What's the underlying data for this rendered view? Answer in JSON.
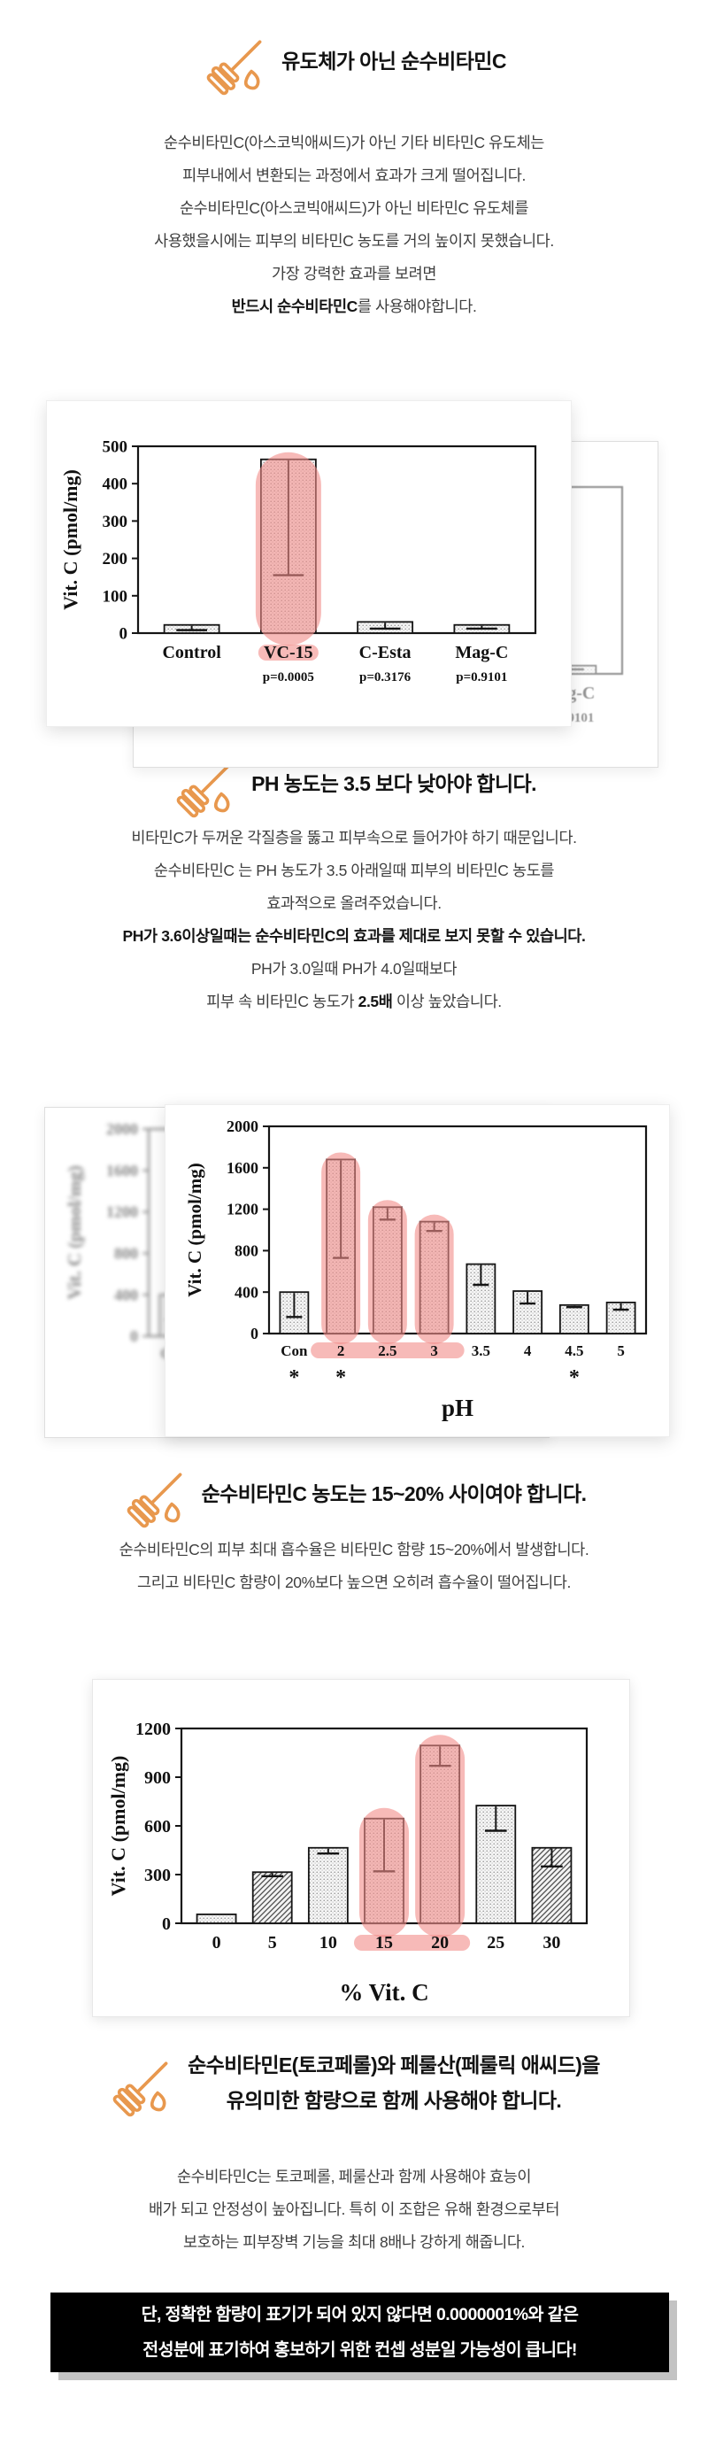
{
  "colors": {
    "accent_orange": "#E8984E",
    "heading_text": "#121212",
    "body_text": "#3e3e3e",
    "highlight_pink": "#F28C88",
    "bar_fill_light": "#f6f6f6",
    "chart_line": "#111111",
    "warning_bg": "#000000",
    "warning_text": "#ffffff",
    "warning_shadow": "#c3c3c3"
  },
  "sections": [
    {
      "icon": "honey-dipper-icon",
      "heading_lines": [
        "유도체가 아닌 순수비타민C"
      ],
      "paragraph": [
        [
          {
            "t": "순수비타민C(아스코빅애씨드)가 아닌 기타 비타민C 유도체는"
          }
        ],
        [
          {
            "t": "피부내에서 변환되는 과정에서 효과가 크게 떨어집니다."
          }
        ],
        [
          {
            "t": "순수비타민C(아스코빅애씨드)가 아닌 비타민C 유도체를"
          }
        ],
        [
          {
            "t": "사용했을시에는 피부의 비타민C 농도를 거의 높이지 못했습니다."
          }
        ],
        [
          {
            "t": "가장 강력한 효과를 보려면"
          }
        ],
        [
          {
            "t": "반드시 순수비타민C",
            "b": true
          },
          {
            "t": "를 사용해야합니다."
          }
        ]
      ]
    },
    {
      "icon": "honey-dipper-icon",
      "heading_lines": [
        "PH 농도는 3.5 보다 낮아야 합니다."
      ],
      "paragraph": [
        [
          {
            "t": "비타민C가 두꺼운 각질층을 뚫고 피부속으로 들어가야 하기 때문입니다."
          }
        ],
        [
          {
            "t": "순수비타민C 는 PH 농도가 3.5 아래일때 피부의 비타민C 농도를"
          }
        ],
        [
          {
            "t": "효과적으로 올려주었습니다."
          }
        ],
        [
          {
            "t": "PH가 3.6이상일때는 순수비타민C의 효과를 제대로 보지 못할 수 있습니다.",
            "b": true
          }
        ],
        [
          {
            "t": "PH가 3.0일때 PH가 4.0일때보다"
          }
        ],
        [
          {
            "t": "피부 속 비타민C 농도가 "
          },
          {
            "t": "2.5배",
            "b": true
          },
          {
            "t": " 이상 높았습니다."
          }
        ]
      ]
    },
    {
      "icon": "honey-dipper-icon",
      "heading_lines": [
        "순수비타민C 농도는 15~20% 사이여야 합니다."
      ],
      "paragraph": [
        [
          {
            "t": "순수비타민C의 피부 최대 흡수율은 비타민C 함량 15~20%에서 발생합니다."
          }
        ],
        [
          {
            "t": "그리고 비타민C 함량이 20%보다 높으면 오히려 흡수율이 떨어집니다."
          }
        ]
      ]
    },
    {
      "icon": "honey-dipper-icon",
      "heading_lines": [
        "순수비타민E(토코페롤)와 페룰산(페룰릭 애씨드)을",
        "유의미한 함량으로 함께 사용해야 합니다."
      ],
      "paragraph": [
        [
          {
            "t": "순수비타민C는 토코페롤, 페룰산과 함께 사용해야 효능이"
          }
        ],
        [
          {
            "t": "배가 되고 안정성이 높아집니다. 특히 이 조합은 유해 환경으로부터"
          }
        ],
        [
          {
            "t": "보호하는 피부장벽 기능을 최대 8배나 강하게 해줍니다."
          }
        ]
      ]
    }
  ],
  "chart_data": [
    {
      "type": "bar",
      "title": "",
      "xlabel": "",
      "ylabel": "Vit. C (pmol/mg)",
      "ylim": [
        0,
        500
      ],
      "yticks": [
        0,
        100,
        200,
        300,
        400,
        500
      ],
      "categories": [
        "Control",
        "VC-15",
        "C-Esta",
        "Mag-C"
      ],
      "values": [
        22,
        465,
        30,
        22
      ],
      "error_low": [
        8,
        155,
        12,
        12
      ],
      "sub_labels": [
        "",
        "p=0.0005",
        "p=0.3176",
        "p=0.9101"
      ],
      "hatch": [
        "dots",
        "dots",
        "dots",
        "dots"
      ],
      "highlighted_bars": [
        "VC-15"
      ],
      "highlight_label_range": [
        "VC-15",
        "VC-15"
      ],
      "grid": false,
      "legend": "none"
    },
    {
      "type": "bar",
      "title": "",
      "xlabel": "pH",
      "ylabel": "Vit. C (pmol/mg)",
      "ylim": [
        0,
        2000
      ],
      "yticks": [
        0,
        400,
        800,
        1200,
        1600,
        2000
      ],
      "categories": [
        "Con",
        "2",
        "2.5",
        "3",
        "3.5",
        "4",
        "4.5",
        "5"
      ],
      "values": [
        400,
        1680,
        1220,
        1080,
        670,
        410,
        275,
        300
      ],
      "error_low": [
        160,
        730,
        1100,
        990,
        470,
        290,
        255,
        230
      ],
      "asterisk_categories": [
        "Con",
        "2",
        "4.5"
      ],
      "hatch": [
        "dots",
        "dots",
        "dots",
        "dots",
        "dots",
        "dots",
        "dots",
        "dots"
      ],
      "highlighted_bars": [
        "2",
        "2.5",
        "3"
      ],
      "highlight_label_range": [
        "2",
        "3"
      ],
      "grid": false,
      "legend": "none"
    },
    {
      "type": "bar",
      "title": "",
      "xlabel": "% Vit. C",
      "ylabel": "Vit. C (pmol/mg)",
      "ylim": [
        0,
        1200
      ],
      "yticks": [
        0,
        300,
        600,
        900,
        1200
      ],
      "categories": [
        "0",
        "5",
        "10",
        "15",
        "20",
        "25",
        "30"
      ],
      "values": [
        55,
        315,
        465,
        645,
        1095,
        725,
        465
      ],
      "error_low": [
        null,
        290,
        430,
        320,
        970,
        570,
        350
      ],
      "hatch": [
        "dots",
        "diag",
        "dots",
        "dots",
        "dots",
        "dots",
        "diag"
      ],
      "highlighted_bars": [
        "15",
        "20"
      ],
      "highlight_label_range": [
        "15",
        "20"
      ],
      "grid": false,
      "legend": "none"
    }
  ],
  "warning": {
    "lines": [
      "단, 정확한 함량이 표기가 되어 있지 않다면 0.0000001%와 같은",
      "전성분에 표기하여 홍보하기 위한 컨셉 성분일 가능성이 큽니다!"
    ]
  }
}
